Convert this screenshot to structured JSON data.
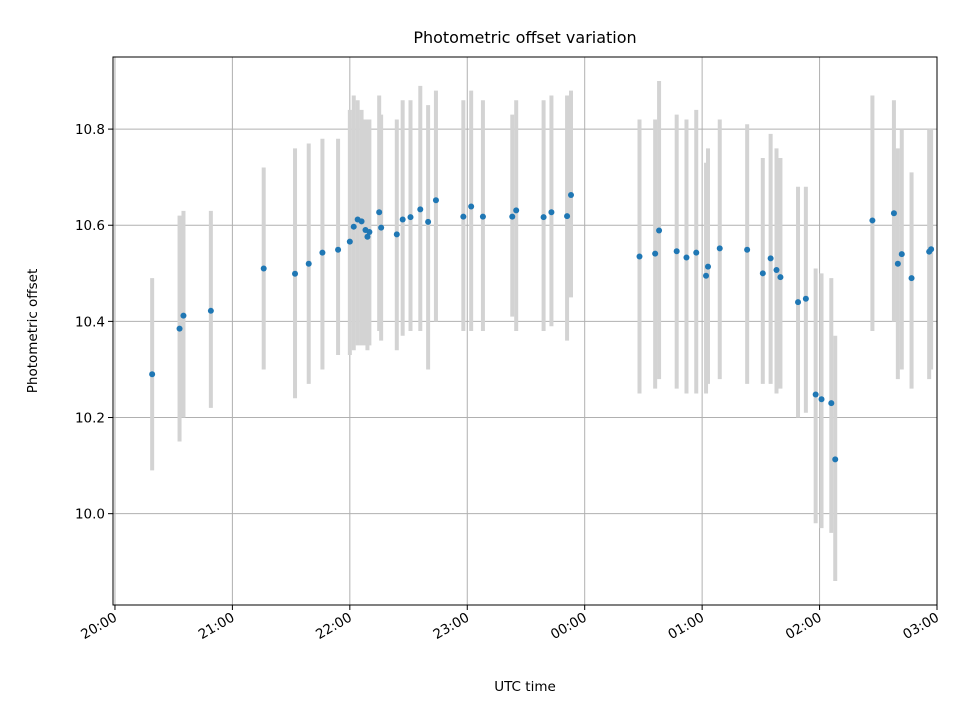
{
  "chart_data": {
    "type": "scatter",
    "title": "Photometric offset variation",
    "xlabel": "UTC time",
    "ylabel": "Photometric offset",
    "x_ticks": [
      "20:00",
      "21:00",
      "22:00",
      "23:00",
      "00:00",
      "01:00",
      "02:00",
      "03:00"
    ],
    "y_ticks": [
      "10.0",
      "10.2",
      "10.4",
      "10.6",
      "10.8"
    ],
    "xlim_minutes_after_20h": [
      -1,
      420
    ],
    "ylim": [
      9.81,
      10.95
    ],
    "grid": true,
    "colors": {
      "points": "#1f77b4",
      "error_bars": "#d3d3d3",
      "grid": "#b0b0b0"
    },
    "points_x_minutes_after_20h": [
      19,
      33,
      35,
      49,
      76,
      92,
      99,
      106,
      114,
      120,
      122,
      124,
      126,
      128,
      129,
      130,
      135,
      136,
      144,
      147,
      151,
      156,
      160,
      164,
      178,
      182,
      188,
      203,
      205,
      219,
      223,
      233,
      231,
      268,
      276,
      278,
      287,
      292,
      297,
      302,
      303,
      309,
      323,
      331,
      335,
      338,
      340,
      349,
      353,
      358,
      361,
      366,
      368,
      387,
      398,
      400,
      402,
      407,
      417,
      416
    ],
    "points_y": [
      10.29,
      10.385,
      10.412,
      10.422,
      10.51,
      10.499,
      10.52,
      10.543,
      10.549,
      10.566,
      10.597,
      10.612,
      10.608,
      10.59,
      10.576,
      10.586,
      10.627,
      10.595,
      10.581,
      10.612,
      10.617,
      10.633,
      10.607,
      10.652,
      10.618,
      10.639,
      10.618,
      10.618,
      10.631,
      10.617,
      10.627,
      10.663,
      10.619,
      10.535,
      10.541,
      10.589,
      10.546,
      10.533,
      10.543,
      10.495,
      10.514,
      10.552,
      10.549,
      10.5,
      10.531,
      10.507,
      10.492,
      10.44,
      10.447,
      10.248,
      10.238,
      10.23,
      10.113,
      10.61,
      10.625,
      10.52,
      10.54,
      10.49,
      10.55,
      10.545
    ],
    "error_low": [
      10.09,
      10.15,
      10.2,
      10.22,
      10.3,
      10.24,
      10.27,
      10.3,
      10.33,
      10.33,
      10.34,
      10.35,
      10.35,
      10.35,
      10.34,
      10.35,
      10.38,
      10.36,
      10.34,
      10.37,
      10.38,
      10.38,
      10.3,
      10.4,
      10.38,
      10.38,
      10.38,
      10.41,
      10.38,
      10.38,
      10.39,
      10.45,
      10.36,
      10.25,
      10.26,
      10.28,
      10.26,
      10.25,
      10.25,
      10.25,
      10.27,
      10.28,
      10.27,
      10.27,
      10.27,
      10.25,
      10.26,
      10.2,
      10.21,
      9.98,
      9.97,
      9.96,
      9.86,
      10.38,
      10.4,
      10.28,
      10.3,
      10.26,
      10.3,
      10.28
    ],
    "error_high": [
      10.49,
      10.62,
      10.63,
      10.63,
      10.72,
      10.76,
      10.77,
      10.78,
      10.78,
      10.84,
      10.87,
      10.86,
      10.84,
      10.82,
      10.81,
      10.82,
      10.87,
      10.83,
      10.82,
      10.86,
      10.86,
      10.89,
      10.85,
      10.88,
      10.86,
      10.88,
      10.86,
      10.83,
      10.86,
      10.86,
      10.87,
      10.88,
      10.87,
      10.82,
      10.82,
      10.9,
      10.83,
      10.82,
      10.84,
      10.73,
      10.76,
      10.82,
      10.81,
      10.74,
      10.79,
      10.76,
      10.74,
      10.68,
      10.68,
      10.51,
      10.5,
      10.49,
      10.37,
      10.87,
      10.86,
      10.76,
      10.8,
      10.71,
      10.8,
      10.8
    ]
  }
}
